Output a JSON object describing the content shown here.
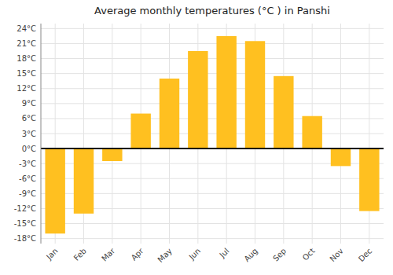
{
  "chart_data": {
    "type": "bar",
    "title": "Average monthly temperatures (°C ) in Panshi",
    "categories": [
      "Jan",
      "Feb",
      "Mar",
      "Apr",
      "May",
      "Jun",
      "Jul",
      "Aug",
      "Sep",
      "Oct",
      "Nov",
      "Dec"
    ],
    "values": [
      -17,
      -13,
      -2.5,
      7,
      14,
      19.5,
      22.5,
      21.5,
      14.5,
      6.5,
      -3.5,
      -12.5
    ],
    "color": "#FFC020",
    "ylim": [
      -19,
      25
    ],
    "yticks": [
      {
        "value": -18,
        "label": "-18°C"
      },
      {
        "value": -15,
        "label": "-15°C"
      },
      {
        "value": -12,
        "label": "-12°C"
      },
      {
        "value": -9,
        "label": "-9°C"
      },
      {
        "value": -6,
        "label": "-6°C"
      },
      {
        "value": -3,
        "label": "-3°C"
      },
      {
        "value": 0,
        "label": "0°C"
      },
      {
        "value": 3,
        "label": "3°C"
      },
      {
        "value": 6,
        "label": "6°C"
      },
      {
        "value": 9,
        "label": "9°C"
      },
      {
        "value": 12,
        "label": "12°C"
      },
      {
        "value": 15,
        "label": "15°C"
      },
      {
        "value": 18,
        "label": "18°C"
      },
      {
        "value": 21,
        "label": "21°C"
      },
      {
        "value": 24,
        "label": "24°C"
      }
    ],
    "grid": true
  }
}
